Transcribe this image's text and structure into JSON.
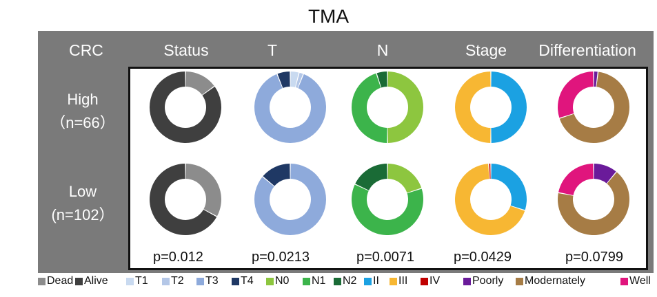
{
  "title": "TMA",
  "header": {
    "corner": "CRC",
    "columns": [
      "Status",
      "T",
      "N",
      "Stage",
      "Differentiation"
    ]
  },
  "rows": [
    {
      "label_line1": "High",
      "label_line2": "（n=66）"
    },
    {
      "label_line1": "Low",
      "label_line2": "(n=102）"
    }
  ],
  "p_values": [
    "p=0.012",
    "p=0.0213",
    "p=0.0071",
    "p=0.0429",
    "p=0.0799"
  ],
  "legend": [
    {
      "label": "Dead",
      "color": "#8c8c8c"
    },
    {
      "label": "Alive",
      "color": "#3f3f3f"
    },
    {
      "label": "T1",
      "color": "#c9daf0"
    },
    {
      "label": "T2",
      "color": "#b4c7e7"
    },
    {
      "label": "T3",
      "color": "#8eaadb"
    },
    {
      "label": "T4",
      "color": "#1f3864"
    },
    {
      "label": "N0",
      "color": "#8dc63f"
    },
    {
      "label": "N1",
      "color": "#3cb44b"
    },
    {
      "label": "N2",
      "color": "#1a6b36"
    },
    {
      "label": "II",
      "color": "#1ba1e2"
    },
    {
      "label": "III",
      "color": "#f7b733"
    },
    {
      "label": "IV",
      "color": "#c00000"
    },
    {
      "label": "Poorly",
      "color": "#6a1b9a"
    },
    {
      "label": "Modernately",
      "color": "#a67c45"
    },
    {
      "label": "Well",
      "color": "#e0157d"
    }
  ],
  "chart_data": [
    {
      "type": "pie",
      "subtype": "donut",
      "column": "Status",
      "row": "High",
      "slices": [
        {
          "label": "Dead",
          "value": 15,
          "color": "#8c8c8c"
        },
        {
          "label": "Alive",
          "value": 85,
          "color": "#3f3f3f"
        }
      ]
    },
    {
      "type": "pie",
      "subtype": "donut",
      "column": "Status",
      "row": "Low",
      "slices": [
        {
          "label": "Dead",
          "value": 33,
          "color": "#8c8c8c"
        },
        {
          "label": "Alive",
          "value": 67,
          "color": "#3f3f3f"
        }
      ]
    },
    {
      "type": "pie",
      "subtype": "donut",
      "column": "T",
      "row": "High",
      "slices": [
        {
          "label": "T1",
          "value": 4,
          "color": "#c9daf0"
        },
        {
          "label": "T2",
          "value": 2,
          "color": "#b4c7e7"
        },
        {
          "label": "T3",
          "value": 88,
          "color": "#8eaadb"
        },
        {
          "label": "T4",
          "value": 6,
          "color": "#1f3864"
        }
      ]
    },
    {
      "type": "pie",
      "subtype": "donut",
      "column": "T",
      "row": "Low",
      "slices": [
        {
          "label": "T1",
          "value": 0,
          "color": "#c9daf0"
        },
        {
          "label": "T2",
          "value": 0,
          "color": "#b4c7e7"
        },
        {
          "label": "T3",
          "value": 86,
          "color": "#8eaadb"
        },
        {
          "label": "T4",
          "value": 14,
          "color": "#1f3864"
        }
      ]
    },
    {
      "type": "pie",
      "subtype": "donut",
      "column": "N",
      "row": "High",
      "slices": [
        {
          "label": "N0",
          "value": 50,
          "color": "#8dc63f"
        },
        {
          "label": "N1",
          "value": 45,
          "color": "#3cb44b"
        },
        {
          "label": "N2",
          "value": 5,
          "color": "#1a6b36"
        }
      ]
    },
    {
      "type": "pie",
      "subtype": "donut",
      "column": "N",
      "row": "Low",
      "slices": [
        {
          "label": "N0",
          "value": 20,
          "color": "#8dc63f"
        },
        {
          "label": "N1",
          "value": 62,
          "color": "#3cb44b"
        },
        {
          "label": "N2",
          "value": 18,
          "color": "#1a6b36"
        }
      ]
    },
    {
      "type": "pie",
      "subtype": "donut",
      "column": "Stage",
      "row": "High",
      "slices": [
        {
          "label": "II",
          "value": 50,
          "color": "#1ba1e2"
        },
        {
          "label": "III",
          "value": 50,
          "color": "#f7b733"
        },
        {
          "label": "IV",
          "value": 0,
          "color": "#c00000"
        }
      ]
    },
    {
      "type": "pie",
      "subtype": "donut",
      "column": "Stage",
      "row": "Low",
      "slices": [
        {
          "label": "II",
          "value": 30,
          "color": "#1ba1e2"
        },
        {
          "label": "III",
          "value": 69,
          "color": "#f7b733"
        },
        {
          "label": "IV",
          "value": 1,
          "color": "#c00000"
        }
      ]
    },
    {
      "type": "pie",
      "subtype": "donut",
      "column": "Differentiation",
      "row": "High",
      "slices": [
        {
          "label": "Poorly",
          "value": 2,
          "color": "#6a1b9a"
        },
        {
          "label": "Modernately",
          "value": 68,
          "color": "#a67c45"
        },
        {
          "label": "Well",
          "value": 30,
          "color": "#e0157d"
        }
      ]
    },
    {
      "type": "pie",
      "subtype": "donut",
      "column": "Differentiation",
      "row": "Low",
      "slices": [
        {
          "label": "Poorly",
          "value": 11,
          "color": "#6a1b9a"
        },
        {
          "label": "Modernately",
          "value": 67,
          "color": "#a67c45"
        },
        {
          "label": "Well",
          "value": 22,
          "color": "#e0157d"
        }
      ]
    }
  ]
}
